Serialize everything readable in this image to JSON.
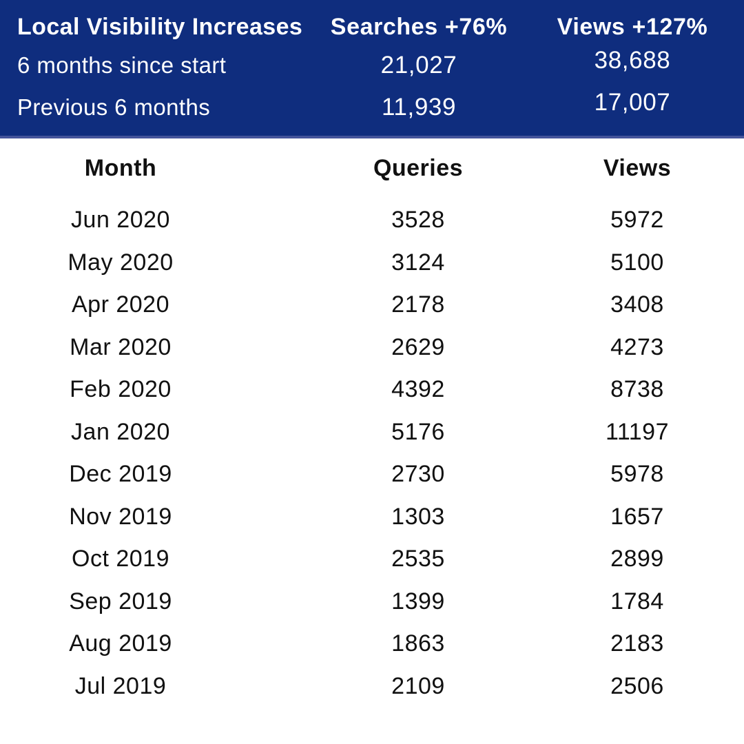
{
  "colors": {
    "header_background": "#0f2d7e",
    "header_bottom_edge": "#44549b",
    "header_text": "#ffffff",
    "body_background": "#ffffff",
    "body_text": "#111111"
  },
  "summary": {
    "title": "Local Visibility Increases",
    "searches_header": "Searches +76%",
    "views_header": "Views +127%",
    "rows": [
      {
        "label": "6 months since start",
        "searches": "21,027",
        "views": "38,688"
      },
      {
        "label": "Previous 6 months",
        "searches": "11,939",
        "views": "17,007"
      }
    ]
  },
  "table": {
    "headers": [
      "Month",
      "Queries",
      "Views"
    ],
    "rows": [
      {
        "month": "Jun 2020",
        "queries": "3528",
        "views": "5972"
      },
      {
        "month": "May 2020",
        "queries": "3124",
        "views": "5100"
      },
      {
        "month": "Apr 2020",
        "queries": "2178",
        "views": "3408"
      },
      {
        "month": "Mar 2020",
        "queries": "2629",
        "views": "4273"
      },
      {
        "month": "Feb 2020",
        "queries": "4392",
        "views": "8738"
      },
      {
        "month": "Jan 2020",
        "queries": "5176",
        "views": "11197"
      },
      {
        "month": "Dec 2019",
        "queries": "2730",
        "views": "5978"
      },
      {
        "month": "Nov 2019",
        "queries": "1303",
        "views": "1657"
      },
      {
        "month": "Oct 2019",
        "queries": "2535",
        "views": "2899"
      },
      {
        "month": "Sep 2019",
        "queries": "1399",
        "views": "1784"
      },
      {
        "month": "Aug 2019",
        "queries": "1863",
        "views": "2183"
      },
      {
        "month": "Jul 2019",
        "queries": "2109",
        "views": "2506"
      }
    ]
  },
  "chart_data": {
    "type": "table",
    "title": "Local Visibility Increases",
    "summary": {
      "searches_increase_pct": 76,
      "views_increase_pct": 127,
      "six_months_since_start": {
        "searches": 21027,
        "views": 38688
      },
      "previous_6_months": {
        "searches": 11939,
        "views": 17007
      }
    },
    "columns": [
      "Month",
      "Queries",
      "Views"
    ],
    "categories": [
      "Jun 2020",
      "May 2020",
      "Apr 2020",
      "Mar 2020",
      "Feb 2020",
      "Jan 2020",
      "Dec 2019",
      "Nov 2019",
      "Oct 2019",
      "Sep 2019",
      "Aug 2019",
      "Jul 2019"
    ],
    "series": [
      {
        "name": "Queries",
        "values": [
          3528,
          3124,
          2178,
          2629,
          4392,
          5176,
          2730,
          1303,
          2535,
          1399,
          1863,
          2109
        ]
      },
      {
        "name": "Views",
        "values": [
          5972,
          5100,
          3408,
          4273,
          8738,
          11197,
          5978,
          1657,
          2899,
          1784,
          2183,
          2506
        ]
      }
    ]
  }
}
